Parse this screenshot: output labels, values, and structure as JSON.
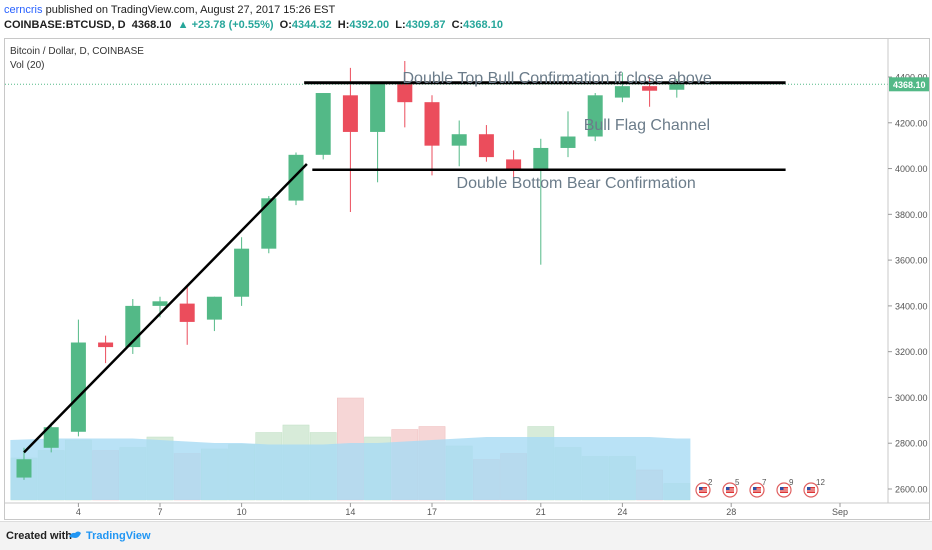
{
  "header": {
    "user": "cerncris",
    "published_text": "published on TradingView.com, August 27, 2017 15:26 EST",
    "symbol": "COINBASE:BTCUSD, D",
    "last": "4368.10",
    "change": "▲ +23.78 (+0.55%)",
    "o_label": "O:",
    "o_value": "4344.32",
    "h_label": "H:",
    "h_value": "4392.00",
    "l_label": "L:",
    "l_value": "4309.87",
    "c_label": "C:",
    "c_value": "4368.10"
  },
  "legend": {
    "title": "Bitcoin / Dollar, D, COINBASE",
    "volume": "Vol (20)"
  },
  "footer": {
    "created_with": "Created with",
    "brand": "TradingView"
  },
  "colors": {
    "up": "#53b987",
    "down": "#eb4d5c",
    "vol_up": "#d7ebd9",
    "vol_down": "#f6d6d6",
    "vol_ma": "#a8dbf4",
    "annotation_text": "#6b7c8a"
  },
  "chart_data": {
    "type": "candlestick",
    "price_axis": {
      "ticks": [
        "2600.00",
        "2800.00",
        "3000.00",
        "3200.00",
        "3400.00",
        "3600.00",
        "3800.00",
        "4000.00",
        "4200.00",
        "4400.00"
      ],
      "range": [
        2560,
        4470
      ],
      "last_price_label": "4368.10"
    },
    "x_axis": {
      "ticks": [
        {
          "label": "4",
          "index": 2
        },
        {
          "label": "7",
          "index": 5
        },
        {
          "label": "10",
          "index": 8
        },
        {
          "label": "14",
          "index": 12
        },
        {
          "label": "17",
          "index": 15
        },
        {
          "label": "21",
          "index": 19
        },
        {
          "label": "24",
          "index": 22
        },
        {
          "label": "28",
          "index": 26
        },
        {
          "label": "Sep",
          "index": 30
        }
      ]
    },
    "candles": [
      {
        "o": 2650,
        "h": 2780,
        "l": 2640,
        "c": 2730
      },
      {
        "o": 2780,
        "h": 2890,
        "l": 2760,
        "c": 2870
      },
      {
        "o": 2850,
        "h": 3340,
        "l": 2830,
        "c": 3240
      },
      {
        "o": 3240,
        "h": 3270,
        "l": 3150,
        "c": 3220
      },
      {
        "o": 3220,
        "h": 3430,
        "l": 3190,
        "c": 3400
      },
      {
        "o": 3400,
        "h": 3440,
        "l": 3350,
        "c": 3420
      },
      {
        "o": 3410,
        "h": 3490,
        "l": 3230,
        "c": 3330
      },
      {
        "o": 3340,
        "h": 3440,
        "l": 3290,
        "c": 3440
      },
      {
        "o": 3440,
        "h": 3700,
        "l": 3400,
        "c": 3650
      },
      {
        "o": 3650,
        "h": 3880,
        "l": 3630,
        "c": 3870
      },
      {
        "o": 3860,
        "h": 4070,
        "l": 3840,
        "c": 4060
      },
      {
        "o": 4060,
        "h": 4330,
        "l": 4040,
        "c": 4330
      },
      {
        "o": 4320,
        "h": 4440,
        "l": 3810,
        "c": 4160
      },
      {
        "o": 4160,
        "h": 4380,
        "l": 3940,
        "c": 4370
      },
      {
        "o": 4370,
        "h": 4470,
        "l": 4180,
        "c": 4290
      },
      {
        "o": 4290,
        "h": 4320,
        "l": 3970,
        "c": 4100
      },
      {
        "o": 4100,
        "h": 4210,
        "l": 4010,
        "c": 4150
      },
      {
        "o": 4150,
        "h": 4190,
        "l": 4030,
        "c": 4050
      },
      {
        "o": 4040,
        "h": 4080,
        "l": 3950,
        "c": 3990
      },
      {
        "o": 3990,
        "h": 4130,
        "l": 3580,
        "c": 4090
      },
      {
        "o": 4090,
        "h": 4250,
        "l": 4050,
        "c": 4140
      },
      {
        "o": 4140,
        "h": 4330,
        "l": 4120,
        "c": 4320
      },
      {
        "o": 4310,
        "h": 4420,
        "l": 4290,
        "c": 4360
      },
      {
        "o": 4360,
        "h": 4400,
        "l": 4270,
        "c": 4340
      },
      {
        "o": 4344.32,
        "h": 4392,
        "l": 4309.87,
        "c": 4368.1
      }
    ],
    "volume": [
      0.28,
      0.33,
      0.4,
      0.33,
      0.35,
      0.42,
      0.31,
      0.34,
      0.37,
      0.45,
      0.5,
      0.45,
      0.68,
      0.42,
      0.47,
      0.49,
      0.36,
      0.27,
      0.31,
      0.49,
      0.35,
      0.29,
      0.29,
      0.2,
      0.11
    ],
    "volume_ma": [
      0.4,
      0.41,
      0.41,
      0.41,
      0.41,
      0.4,
      0.39,
      0.38,
      0.38,
      0.37,
      0.37,
      0.37,
      0.38,
      0.38,
      0.39,
      0.4,
      0.41,
      0.42,
      0.42,
      0.42,
      0.42,
      0.42,
      0.42,
      0.42,
      0.41
    ],
    "trendline": {
      "from": {
        "index": 0,
        "price": 2760
      },
      "to": {
        "index": 10.4,
        "price": 4020
      }
    },
    "resistance": {
      "from_index": 10.3,
      "to_index": 28,
      "price": 4375
    },
    "support": {
      "from_index": 10.6,
      "to_index": 28,
      "price": 3995
    },
    "annotations": [
      {
        "text": "Double Top Bull Confirmation if close above",
        "index": 19.6,
        "price": 4400
      },
      {
        "text": "Bull Flag Channel",
        "index": 22.9,
        "price": 4195
      },
      {
        "text": "Double Bottom Bear Confirmation",
        "index": 20.3,
        "price": 3980
      }
    ],
    "event_badges": [
      "2",
      "5",
      "7",
      "9",
      "12"
    ]
  }
}
